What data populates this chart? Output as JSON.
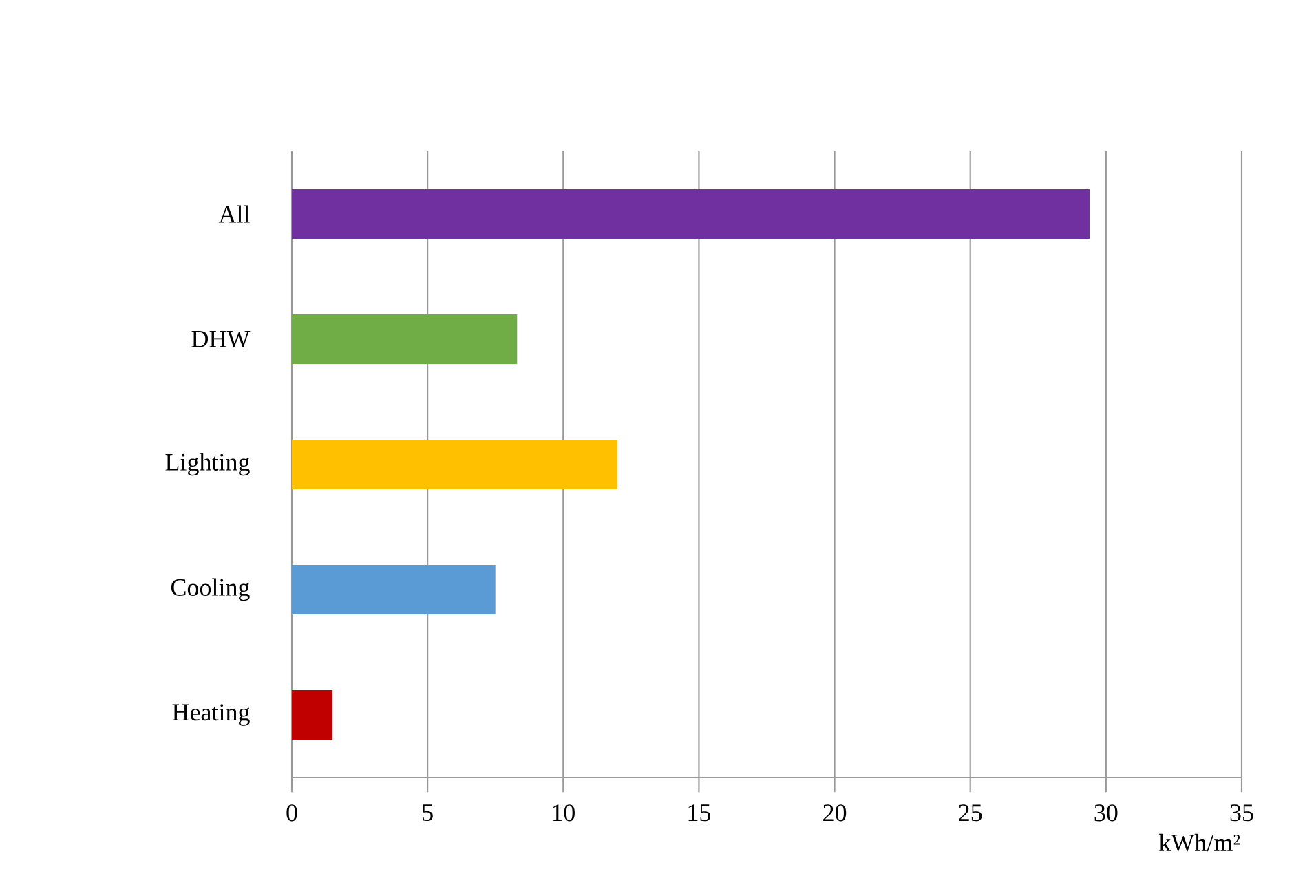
{
  "chart_data": {
    "type": "bar",
    "orientation": "horizontal",
    "categories": [
      "All",
      "DHW",
      "Lighting",
      "Cooling",
      "Heating"
    ],
    "values": [
      29.4,
      8.3,
      12.0,
      7.5,
      1.5
    ],
    "colors": [
      "#7030a0",
      "#70ad47",
      "#ffc000",
      "#5b9bd5",
      "#c00000"
    ],
    "xlim": [
      0,
      35
    ],
    "xticks": [
      0,
      5,
      10,
      15,
      20,
      25,
      30,
      35
    ],
    "xlabel": "kWh/m²",
    "grid": "x"
  }
}
